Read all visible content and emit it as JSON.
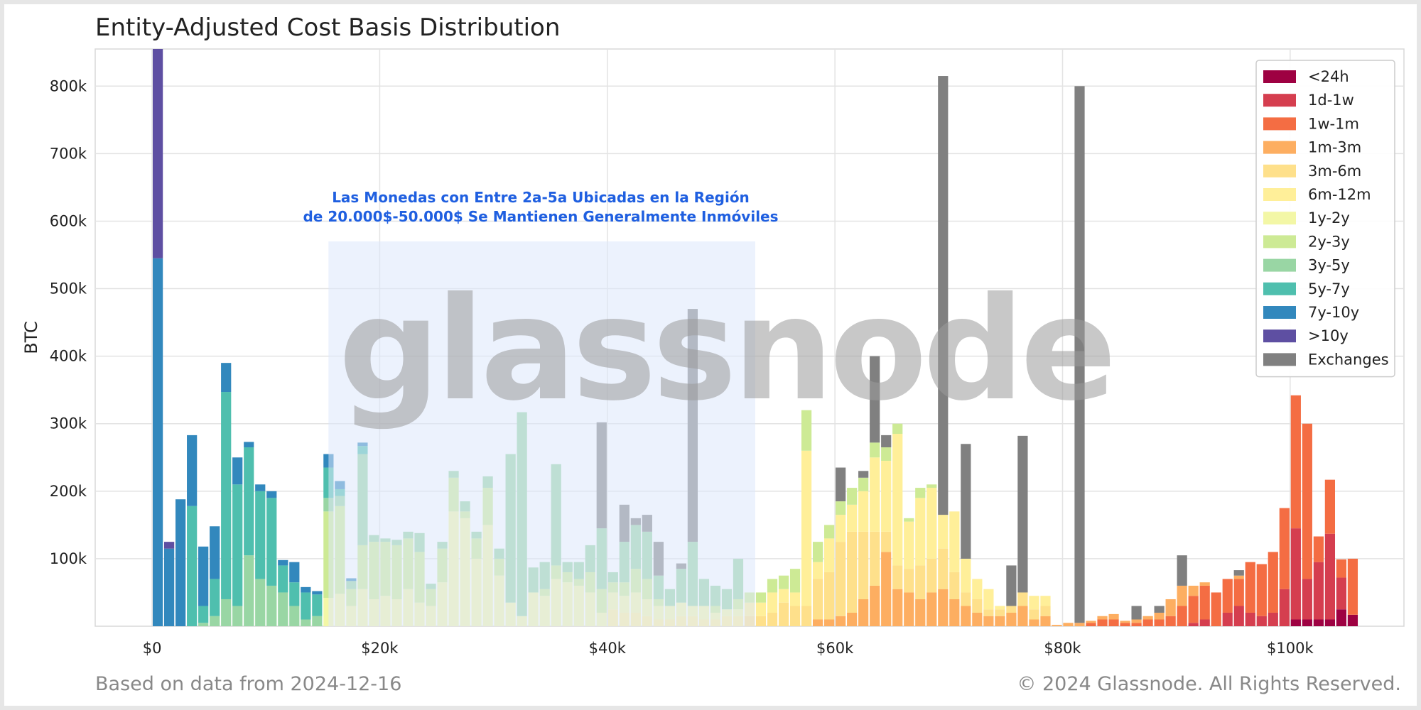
{
  "footer": {
    "left": "Based on data from 2024-12-16",
    "right": "© 2024 Glassnode. All Rights Reserved."
  },
  "watermark": "glassnode",
  "annotation": {
    "line1": "Las Monedas con Entre 2a-5a Ubicadas en la Región",
    "line2": "de 20.000$-50.000$ Se Mantienen Generalmente Inmóviles",
    "x_range": [
      15500,
      53000
    ],
    "y_top": 570000
  },
  "chart_data": {
    "type": "bar",
    "stacked": true,
    "title": "Entity-Adjusted Cost Basis Distribution",
    "xlabel": "",
    "ylabel": "BTC",
    "xlim": [
      -5000,
      110000
    ],
    "ylim": [
      0,
      855000
    ],
    "xticks": [
      0,
      20000,
      40000,
      60000,
      80000,
      100000
    ],
    "xtick_labels": [
      "$0",
      "$20k",
      "$40k",
      "$60k",
      "$80k",
      "$100k"
    ],
    "yticks": [
      100000,
      200000,
      300000,
      400000,
      500000,
      600000,
      700000,
      800000
    ],
    "ytick_labels": [
      "100k",
      "200k",
      "300k",
      "400k",
      "500k",
      "600k",
      "700k",
      "800k"
    ],
    "grid": true,
    "legend_position": "top-right",
    "bin_width": 1000,
    "series_names": [
      "<24h",
      "1d-1w",
      "1w-1m",
      "1m-3m",
      "3m-6m",
      "6m-12m",
      "1y-2y",
      "2y-3y",
      "3y-5y",
      "5y-7y",
      "7y-10y",
      ">10y",
      "Exchanges"
    ],
    "colors": [
      "#9e0142",
      "#d53e4f",
      "#f46d43",
      "#fdae61",
      "#fee08b",
      "#ffef99",
      "#f3f7a6",
      "#cdea95",
      "#99d6a4",
      "#4fbfae",
      "#3288bd",
      "#5e4fa2",
      "#808080"
    ],
    "bins": [
      {
        "x": 500,
        "v": {
          "7y-10y": 545000,
          ">10y": 310000
        }
      },
      {
        "x": 1500,
        "v": {
          "7y-10y": 115000,
          ">10y": 10000
        }
      },
      {
        "x": 2500,
        "v": {
          "7y-10y": 188000
        }
      },
      {
        "x": 3500,
        "v": {
          "5y-7y": 178000,
          "7y-10y": 105000
        }
      },
      {
        "x": 4500,
        "v": {
          "3y-5y": 5000,
          "5y-7y": 25000,
          "7y-10y": 88000
        }
      },
      {
        "x": 5500,
        "v": {
          "3y-5y": 15000,
          "5y-7y": 55000,
          "7y-10y": 78000
        }
      },
      {
        "x": 6500,
        "v": {
          "3y-5y": 40000,
          "5y-7y": 307000,
          "7y-10y": 43000
        }
      },
      {
        "x": 7500,
        "v": {
          "3y-5y": 30000,
          "5y-7y": 180000,
          "7y-10y": 40000
        }
      },
      {
        "x": 8500,
        "v": {
          "3y-5y": 105000,
          "5y-7y": 160000,
          "7y-10y": 8000
        }
      },
      {
        "x": 9500,
        "v": {
          "3y-5y": 70000,
          "5y-7y": 130000,
          "7y-10y": 10000
        }
      },
      {
        "x": 10500,
        "v": {
          "3y-5y": 60000,
          "5y-7y": 130000,
          "7y-10y": 10000
        }
      },
      {
        "x": 11500,
        "v": {
          "3y-5y": 50000,
          "5y-7y": 40000,
          "7y-10y": 8000
        }
      },
      {
        "x": 12500,
        "v": {
          "3y-5y": 30000,
          "5y-7y": 35000,
          "7y-10y": 30000
        }
      },
      {
        "x": 13500,
        "v": {
          "3y-5y": 10000,
          "5y-7y": 40000,
          "7y-10y": 8000
        }
      },
      {
        "x": 14500,
        "v": {
          "3y-5y": 15000,
          "5y-7y": 32000,
          "7y-10y": 5000
        }
      },
      {
        "x": 15500,
        "v": {
          "1y-2y": 42000,
          "2y-3y": 128000,
          "3y-5y": 20000,
          "5y-7y": 45000,
          "7y-10y": 20000
        }
      },
      {
        "x": 16500,
        "v": {
          "1y-2y": 48000,
          "2y-3y": 130000,
          "3y-5y": 15000,
          "5y-7y": 10000,
          "7y-10y": 12000
        }
      },
      {
        "x": 17500,
        "v": {
          "1y-2y": 30000,
          "2y-3y": 25000,
          "3y-5y": 12000,
          "7y-10y": 4000
        }
      },
      {
        "x": 18500,
        "v": {
          "1y-2y": 55000,
          "2y-3y": 65000,
          "3y-5y": 135000,
          "5y-7y": 12000,
          "7y-10y": 5000
        }
      },
      {
        "x": 19500,
        "v": {
          "1y-2y": 40000,
          "2y-3y": 85000,
          "3y-5y": 10000
        }
      },
      {
        "x": 20500,
        "v": {
          "1y-2y": 45000,
          "2y-3y": 80000,
          "3y-5y": 5000
        }
      },
      {
        "x": 21500,
        "v": {
          "1y-2y": 40000,
          "2y-3y": 80000,
          "3y-5y": 8000
        }
      },
      {
        "x": 22500,
        "v": {
          "1y-2y": 55000,
          "2y-3y": 75000,
          "3y-5y": 10000
        }
      },
      {
        "x": 23500,
        "v": {
          "1y-2y": 35000,
          "2y-3y": 75000,
          "3y-5y": 28000
        }
      },
      {
        "x": 24500,
        "v": {
          "1y-2y": 30000,
          "2y-3y": 25000,
          "3y-5y": 8000
        }
      },
      {
        "x": 25500,
        "v": {
          "1y-2y": 65000,
          "2y-3y": 50000,
          "3y-5y": 10000
        }
      },
      {
        "x": 26500,
        "v": {
          "1y-2y": 170000,
          "2y-3y": 50000,
          "3y-5y": 10000
        }
      },
      {
        "x": 27500,
        "v": {
          "1y-2y": 160000,
          "2y-3y": 10000,
          "3y-5y": 15000
        }
      },
      {
        "x": 28500,
        "v": {
          "1y-2y": 100000,
          "2y-3y": 30000,
          "3y-5y": 10000
        }
      },
      {
        "x": 29500,
        "v": {
          "1y-2y": 150000,
          "2y-3y": 55000,
          "3y-5y": 17000
        }
      },
      {
        "x": 30500,
        "v": {
          "1y-2y": 75000,
          "2y-3y": 25000,
          "3y-5y": 15000
        }
      },
      {
        "x": 31500,
        "v": {
          "1y-2y": 35000,
          "3y-5y": 220000
        }
      },
      {
        "x": 32500,
        "v": {
          "1y-2y": 15000,
          "3y-5y": 302000
        }
      },
      {
        "x": 33500,
        "v": {
          "1y-2y": 50000,
          "3y-5y": 37000
        }
      },
      {
        "x": 34500,
        "v": {
          "1y-2y": 45000,
          "2y-3y": 10000,
          "3y-5y": 40000
        }
      },
      {
        "x": 35500,
        "v": {
          "1y-2y": 70000,
          "2y-3y": 20000,
          "3y-5y": 150000
        }
      },
      {
        "x": 36500,
        "v": {
          "1y-2y": 65000,
          "2y-3y": 15000,
          "3y-5y": 15000
        }
      },
      {
        "x": 37500,
        "v": {
          "1y-2y": 60000,
          "2y-3y": 10000,
          "3y-5y": 25000
        }
      },
      {
        "x": 38500,
        "v": {
          "1y-2y": 50000,
          "2y-3y": 30000,
          "3y-5y": 40000
        }
      },
      {
        "x": 39500,
        "v": {
          "1y-2y": 20000,
          "2y-3y": 35000,
          "3y-5y": 90000,
          "Exchanges": 157000
        }
      },
      {
        "x": 40500,
        "v": {
          "6m-12m": 25000,
          "1y-2y": 25000,
          "2y-3y": 15000,
          "3y-5y": 15000
        }
      },
      {
        "x": 41500,
        "v": {
          "6m-12m": 20000,
          "1y-2y": 25000,
          "2y-3y": 20000,
          "3y-5y": 60000,
          "Exchanges": 55000
        }
      },
      {
        "x": 42500,
        "v": {
          "6m-12m": 20000,
          "1y-2y": 30000,
          "2y-3y": 35000,
          "3y-5y": 65000,
          "Exchanges": 10000
        }
      },
      {
        "x": 43500,
        "v": {
          "6m-12m": 15000,
          "1y-2y": 25000,
          "2y-3y": 30000,
          "3y-5y": 70000,
          "Exchanges": 25000
        }
      },
      {
        "x": 44500,
        "v": {
          "6m-12m": 10000,
          "1y-2y": 20000,
          "2y-3y": 10000,
          "3y-5y": 35000,
          "Exchanges": 50000
        }
      },
      {
        "x": 45500,
        "v": {
          "6m-12m": 10000,
          "1y-2y": 20000,
          "3y-5y": 25000
        }
      },
      {
        "x": 46500,
        "v": {
          "6m-12m": 15000,
          "1y-2y": 20000,
          "3y-5y": 50000,
          "Exchanges": 8000
        }
      },
      {
        "x": 47500,
        "v": {
          "6m-12m": 15000,
          "1y-2y": 15000,
          "3y-5y": 95000,
          "Exchanges": 345000
        }
      },
      {
        "x": 48500,
        "v": {
          "6m-12m": 10000,
          "1y-2y": 20000,
          "3y-5y": 40000
        }
      },
      {
        "x": 49500,
        "v": {
          "6m-12m": 10000,
          "1y-2y": 10000,
          "2y-3y": 10000,
          "3y-5y": 30000
        }
      },
      {
        "x": 50500,
        "v": {
          "6m-12m": 15000,
          "1y-2y": 10000,
          "3y-5y": 30000
        }
      },
      {
        "x": 51500,
        "v": {
          "6m-12m": 15000,
          "1y-2y": 10000,
          "2y-3y": 15000,
          "3y-5y": 60000
        }
      },
      {
        "x": 52500,
        "v": {
          "3m-6m": 15000,
          "6m-12m": 20000,
          "2y-3y": 15000
        }
      },
      {
        "x": 53500,
        "v": {
          "3m-6m": 15000,
          "6m-12m": 20000,
          "2y-3y": 15000
        }
      },
      {
        "x": 54500,
        "v": {
          "3m-6m": 20000,
          "6m-12m": 30000,
          "2y-3y": 20000
        }
      },
      {
        "x": 55500,
        "v": {
          "3m-6m": 35000,
          "6m-12m": 20000,
          "2y-3y": 20000
        }
      },
      {
        "x": 56500,
        "v": {
          "3m-6m": 30000,
          "6m-12m": 20000,
          "2y-3y": 35000
        }
      },
      {
        "x": 57500,
        "v": {
          "3m-6m": 30000,
          "6m-12m": 230000,
          "2y-3y": 60000
        }
      },
      {
        "x": 58500,
        "v": {
          "1m-3m": 10000,
          "3m-6m": 60000,
          "6m-12m": 25000,
          "2y-3y": 30000
        }
      },
      {
        "x": 59500,
        "v": {
          "1m-3m": 10000,
          "3m-6m": 70000,
          "6m-12m": 50000,
          "2y-3y": 20000
        }
      },
      {
        "x": 60500,
        "v": {
          "1m-3m": 15000,
          "3m-6m": 110000,
          "6m-12m": 40000,
          "2y-3y": 20000,
          "Exchanges": 50000
        }
      },
      {
        "x": 61500,
        "v": {
          "1m-3m": 20000,
          "3m-6m": 120000,
          "6m-12m": 40000,
          "2y-3y": 25000
        }
      },
      {
        "x": 62500,
        "v": {
          "1m-3m": 40000,
          "3m-6m": 100000,
          "6m-12m": 60000,
          "2y-3y": 20000,
          "Exchanges": 10000
        }
      },
      {
        "x": 63500,
        "v": {
          "1m-3m": 60000,
          "3m-6m": 80000,
          "6m-12m": 110000,
          "2y-3y": 22000,
          "Exchanges": 128000
        }
      },
      {
        "x": 64500,
        "v": {
          "1m-3m": 110000,
          "3m-6m": 30000,
          "6m-12m": 105000,
          "2y-3y": 20000,
          "Exchanges": 18000
        }
      },
      {
        "x": 65500,
        "v": {
          "1m-3m": 55000,
          "3m-6m": 35000,
          "6m-12m": 195000,
          "2y-3y": 15000
        }
      },
      {
        "x": 66500,
        "v": {
          "1m-3m": 50000,
          "3m-6m": 35000,
          "6m-12m": 70000,
          "2y-3y": 5000
        }
      },
      {
        "x": 67500,
        "v": {
          "1m-3m": 40000,
          "3m-6m": 50000,
          "6m-12m": 100000,
          "2y-3y": 15000
        }
      },
      {
        "x": 68500,
        "v": {
          "1m-3m": 50000,
          "3m-6m": 50000,
          "6m-12m": 105000,
          "2y-3y": 5000
        }
      },
      {
        "x": 69500,
        "v": {
          "1m-3m": 55000,
          "3m-6m": 60000,
          "6m-12m": 50000,
          "Exchanges": 650000
        }
      },
      {
        "x": 70500,
        "v": {
          "1m-3m": 40000,
          "3m-6m": 40000,
          "6m-12m": 90000
        }
      },
      {
        "x": 71500,
        "v": {
          "1m-3m": 30000,
          "3m-6m": 20000,
          "6m-12m": 50000,
          "Exchanges": 170000
        }
      },
      {
        "x": 72500,
        "v": {
          "1m-3m": 20000,
          "3m-6m": 20000,
          "6m-12m": 30000
        }
      },
      {
        "x": 73500,
        "v": {
          "1m-3m": 15000,
          "3m-6m": 10000,
          "6m-12m": 30000
        }
      },
      {
        "x": 74500,
        "v": {
          "1m-3m": 15000,
          "3m-6m": 10000,
          "6m-12m": 5000
        }
      },
      {
        "x": 75500,
        "v": {
          "1m-3m": 20000,
          "3m-6m": 10000,
          "Exchanges": 60000
        }
      },
      {
        "x": 76500,
        "v": {
          "1m-3m": 30000,
          "3m-6m": 20000,
          "Exchanges": 232000
        }
      },
      {
        "x": 77500,
        "v": {
          "1m-3m": 10000,
          "3m-6m": 15000,
          "6m-12m": 20000
        }
      },
      {
        "x": 78500,
        "v": {
          "1m-3m": 15000,
          "3m-6m": 15000,
          "6m-12m": 15000
        }
      },
      {
        "x": 79500,
        "v": {
          "1m-3m": 2000
        }
      },
      {
        "x": 80500,
        "v": {
          "1m-3m": 5000
        }
      },
      {
        "x": 81500,
        "v": {
          "1m-3m": 5000,
          "Exchanges": 795000
        }
      },
      {
        "x": 82500,
        "v": {
          "1w-1m": 5000,
          "1m-3m": 3000
        }
      },
      {
        "x": 83500,
        "v": {
          "1w-1m": 10000,
          "1m-3m": 5000
        }
      },
      {
        "x": 84500,
        "v": {
          "1w-1m": 10000,
          "1m-3m": 8000
        }
      },
      {
        "x": 85500,
        "v": {
          "1w-1m": 5000,
          "1m-3m": 3000
        }
      },
      {
        "x": 86500,
        "v": {
          "1w-1m": 5000,
          "1m-3m": 5000,
          "Exchanges": 20000
        }
      },
      {
        "x": 87500,
        "v": {
          "1w-1m": 10000,
          "1m-3m": 5000
        }
      },
      {
        "x": 88500,
        "v": {
          "1w-1m": 10000,
          "1m-3m": 10000,
          "Exchanges": 10000
        }
      },
      {
        "x": 89500,
        "v": {
          "1w-1m": 15000,
          "1m-3m": 25000
        }
      },
      {
        "x": 90500,
        "v": {
          "1w-1m": 30000,
          "1m-3m": 30000,
          "Exchanges": 45000
        }
      },
      {
        "x": 91500,
        "v": {
          "1d-1w": 5000,
          "1w-1m": 40000,
          "1m-3m": 15000
        }
      },
      {
        "x": 92500,
        "v": {
          "1d-1w": 10000,
          "1w-1m": 50000,
          "1m-3m": 5000
        }
      },
      {
        "x": 93500,
        "v": {
          "1w-1m": 50000
        }
      },
      {
        "x": 94500,
        "v": {
          "1d-1w": 20000,
          "1w-1m": 50000
        }
      },
      {
        "x": 95500,
        "v": {
          "1d-1w": 30000,
          "1w-1m": 40000,
          "1m-3m": 5000,
          "Exchanges": 8000
        }
      },
      {
        "x": 96500,
        "v": {
          "1d-1w": 20000,
          "1w-1m": 75000
        }
      },
      {
        "x": 97500,
        "v": {
          "1d-1w": 15000,
          "1w-1m": 77000
        }
      },
      {
        "x": 98500,
        "v": {
          "1d-1w": 20000,
          "1w-1m": 90000
        }
      },
      {
        "x": 99500,
        "v": {
          "1d-1w": 55000,
          "1w-1m": 120000
        }
      },
      {
        "x": 100500,
        "v": {
          "<24h": 10000,
          "1d-1w": 135000,
          "1w-1m": 197000
        }
      },
      {
        "x": 101500,
        "v": {
          "<24h": 10000,
          "1d-1w": 60000,
          "1w-1m": 230000
        }
      },
      {
        "x": 102500,
        "v": {
          "<24h": 10000,
          "1d-1w": 85000,
          "1w-1m": 38000
        }
      },
      {
        "x": 103500,
        "v": {
          "<24h": 10000,
          "1d-1w": 127000,
          "1w-1m": 80000
        }
      },
      {
        "x": 104500,
        "v": {
          "<24h": 25000,
          "1d-1w": 47000,
          "1w-1m": 27000
        }
      },
      {
        "x": 105500,
        "v": {
          "<24h": 17000,
          "1w-1m": 83000
        }
      }
    ]
  }
}
